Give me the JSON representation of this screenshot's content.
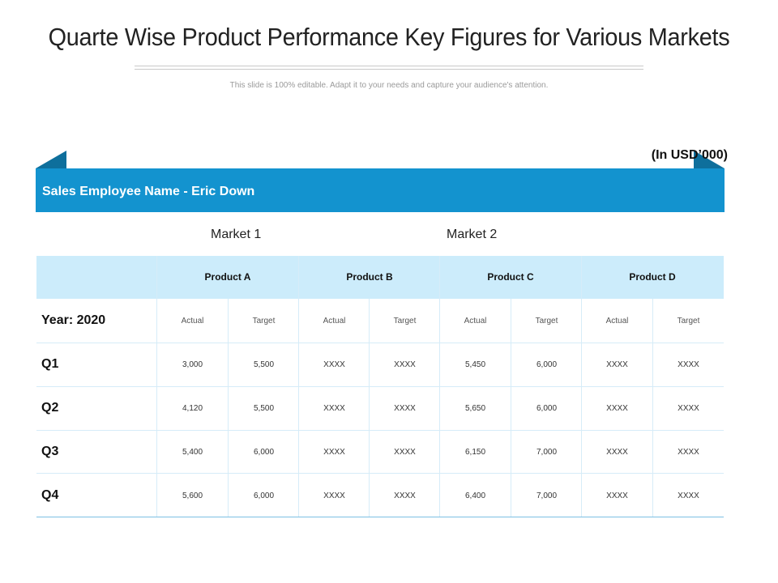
{
  "slide": {
    "title": "Quarte Wise Product Performance Key Figures for Various Markets",
    "subtitle": "This slide is 100% editable. Adapt it to your needs and capture your audience's attention.",
    "currency_note": "(In USD’000)",
    "employee_label": "Sales Employee Name - Eric Down",
    "colors": {
      "accent": "#1393cf",
      "header_fill": "#ccecfb",
      "fold": "#0e6f9c"
    }
  },
  "markets": [
    "Market 1",
    "Market 2"
  ],
  "products": [
    "Product A",
    "Product B",
    "Product C",
    "Product D"
  ],
  "year_label": "Year: 2020",
  "subheaders": [
    "Actual",
    "Target",
    "Actual",
    "Target",
    "Actual",
    "Target",
    "Actual",
    "Target"
  ],
  "rows": [
    {
      "label": "Q1",
      "values": [
        "3,000",
        "5,500",
        "XXXX",
        "XXXX",
        "5,450",
        "6,000",
        "XXXX",
        "XXXX"
      ]
    },
    {
      "label": "Q2",
      "values": [
        "4,120",
        "5,500",
        "XXXX",
        "XXXX",
        "5,650",
        "6,000",
        "XXXX",
        "XXXX"
      ]
    },
    {
      "label": "Q3",
      "values": [
        "5,400",
        "6,000",
        "XXXX",
        "XXXX",
        "6,150",
        "7,000",
        "XXXX",
        "XXXX"
      ]
    },
    {
      "label": "Q4",
      "values": [
        "5,600",
        "6,000",
        "XXXX",
        "XXXX",
        "6,400",
        "7,000",
        "XXXX",
        "XXXX"
      ]
    }
  ]
}
